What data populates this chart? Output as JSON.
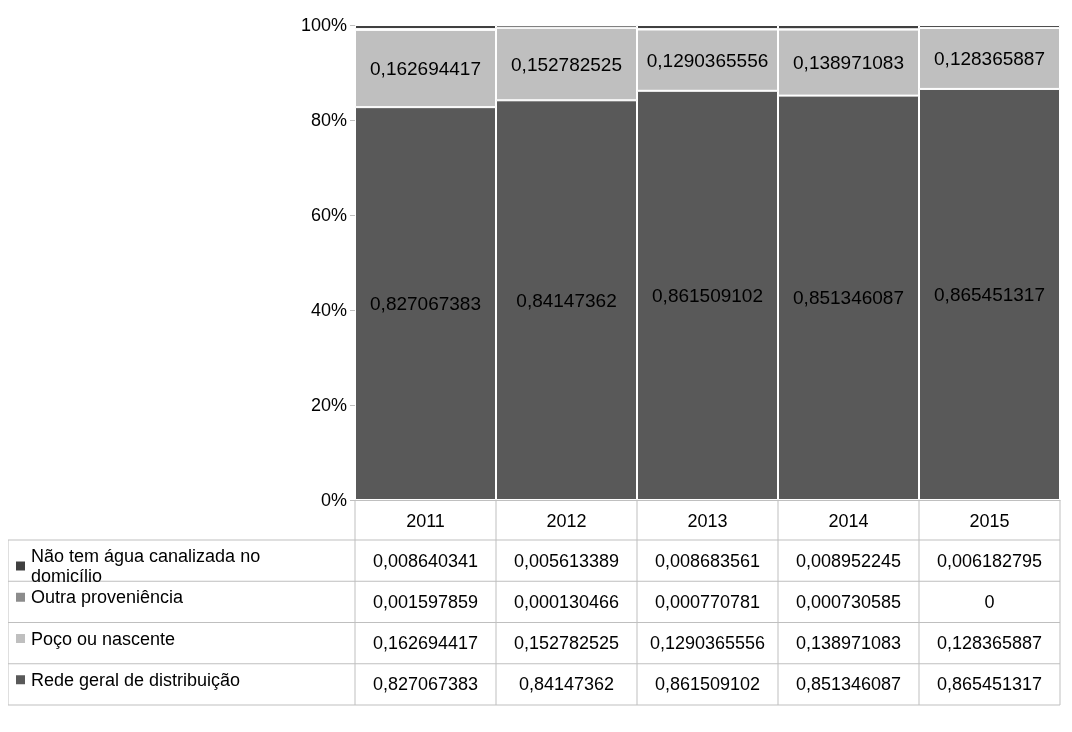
{
  "chart_data": {
    "type": "bar",
    "stacked": true,
    "categories": [
      "2011",
      "2012",
      "2013",
      "2014",
      "2015"
    ],
    "series": [
      {
        "name": "Rede geral de distribuição",
        "color": "#595959",
        "values": [
          0.827067383,
          0.84147362,
          0.861509102,
          0.851346087,
          0.865451317
        ],
        "value_labels": [
          "0,827067383",
          "0,84147362",
          "0,861509102",
          "0,851346087",
          "0,865451317"
        ]
      },
      {
        "name": "Poço ou nascente",
        "color": "#bfbfbf",
        "values": [
          0.162694417,
          0.152782525,
          0.1290365556,
          0.138971083,
          0.128365887
        ],
        "value_labels": [
          "0,162694417",
          "0,152782525",
          "0,1290365556",
          "0,138971083",
          "0,128365887"
        ]
      },
      {
        "name": "Outra proveniência",
        "color": "#8c8c8c",
        "values": [
          0.001597859,
          0.000130466,
          0.000770781,
          0.000730585,
          0
        ],
        "value_labels": [
          "0,001597859",
          "0,000130466",
          "0,000770781",
          "0,000730585",
          "0"
        ]
      },
      {
        "name": "Não tem água canalizada no domicílio",
        "color": "#404040",
        "values": [
          0.008640341,
          0.005613389,
          0.008683561,
          0.008952245,
          0.006182795
        ],
        "value_labels": [
          "0,008640341",
          "0,005613389",
          "0,008683561",
          "0,008952245",
          "0,006182795"
        ]
      }
    ],
    "ylim": [
      0,
      1
    ],
    "yticks": [
      {
        "value": 0,
        "label": "0%"
      },
      {
        "value": 0.2,
        "label": "20%"
      },
      {
        "value": 0.4,
        "label": "40%"
      },
      {
        "value": 0.6,
        "label": "60%"
      },
      {
        "value": 0.8,
        "label": "80%"
      },
      {
        "value": 1,
        "label": "100%"
      }
    ],
    "legend": "bottom left",
    "grid": false
  }
}
